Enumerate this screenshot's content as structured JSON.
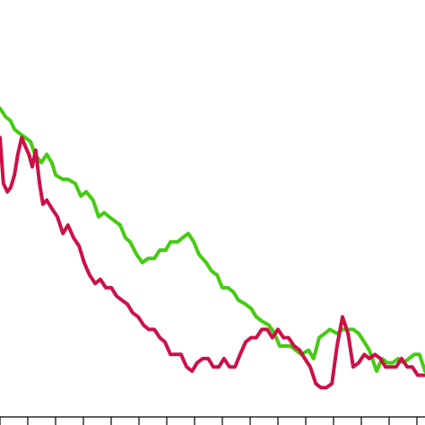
{
  "chart_data": {
    "type": "line",
    "title": "",
    "xlabel": "",
    "ylabel": "",
    "grid": false,
    "legend": "none",
    "xlim": [
      0,
      100
    ],
    "ylim": [
      0,
      100
    ],
    "x_ticks": [
      0,
      6.54,
      13.08,
      19.62,
      26.16,
      32.7,
      39.24,
      45.78,
      52.32,
      58.86,
      65.4,
      71.94,
      78.48,
      85.02,
      91.56,
      98.1
    ],
    "series": [
      {
        "color": "#44cc11",
        "x": [
          0,
          1.3,
          2.5,
          3.4,
          4.6,
          5.9,
          7.2,
          8.2,
          9.7,
          11.0,
          12.2,
          13.1,
          14.8,
          16.0,
          17.7,
          19.0,
          20.3,
          21.9,
          23.2,
          24.5,
          25.7,
          27.0,
          28.3,
          29.5,
          30.6,
          32.1,
          33.5,
          34.8,
          36.3,
          37.6,
          39.0,
          40.1,
          41.8,
          43.0,
          44.3,
          45.6,
          46.8,
          48.5,
          49.8,
          51.1,
          52.3,
          53.6,
          54.9,
          56.1,
          57.8,
          59.1,
          60.3,
          61.6,
          63.3,
          64.6,
          65.8,
          67.1,
          68.4,
          69.6,
          70.9,
          72.6,
          73.8,
          75.1,
          76.4,
          77.6,
          79.3,
          80.6,
          81.9,
          83.1,
          84.4,
          85.7,
          86.9,
          88.6,
          89.9,
          91.1,
          92.4,
          93.7,
          95.0,
          96.2,
          97.5,
          98.7,
          100
        ],
        "y": [
          74,
          72,
          71,
          69,
          68,
          67,
          66,
          63,
          61,
          63,
          61,
          58,
          57,
          57,
          56,
          53,
          54,
          52,
          48,
          49,
          48,
          47,
          46,
          43,
          42,
          39,
          37,
          38,
          38,
          40,
          40,
          42,
          42,
          43,
          44,
          42,
          39,
          37,
          35,
          34,
          31,
          31,
          30,
          28,
          27,
          26,
          24,
          23,
          22,
          20,
          17,
          17,
          17,
          16,
          15,
          16,
          14,
          19,
          20,
          21,
          20,
          21,
          21,
          21,
          20,
          18,
          16,
          11,
          14,
          13,
          13,
          14,
          13,
          14,
          15,
          15,
          11
        ]
      },
      {
        "color": "#cc1148",
        "x": [
          0,
          0.8,
          1.7,
          2.5,
          3.4,
          4.2,
          5.1,
          5.9,
          6.8,
          7.6,
          8.4,
          9.3,
          10.1,
          11.0,
          12.2,
          13.5,
          14.8,
          16.0,
          17.3,
          18.6,
          19.8,
          21.1,
          22.4,
          23.6,
          24.9,
          26.2,
          27.4,
          28.7,
          30.0,
          31.2,
          32.5,
          33.8,
          35.0,
          36.3,
          37.6,
          38.8,
          40.1,
          41.4,
          42.6,
          43.9,
          45.2,
          46.4,
          47.7,
          49.0,
          50.2,
          51.5,
          52.7,
          54.0,
          55.3,
          56.5,
          57.8,
          59.1,
          60.3,
          61.6,
          62.9,
          64.1,
          65.4,
          66.7,
          67.9,
          69.2,
          70.5,
          71.7,
          73.0,
          74.3,
          75.5,
          76.8,
          78.1,
          79.3,
          80.6,
          81.9,
          83.1,
          84.4,
          85.7,
          86.9,
          88.2,
          89.5,
          90.7,
          92.0,
          93.2,
          94.5,
          95.8,
          97.0,
          98.3,
          100
        ],
        "y": [
          67,
          56,
          54,
          55,
          58,
          63,
          67,
          65,
          63,
          60,
          64,
          56,
          51,
          52,
          50,
          48,
          44,
          46,
          43,
          41,
          37,
          34,
          32,
          33,
          31,
          31,
          29,
          28,
          27,
          25,
          24,
          22,
          21,
          21,
          19,
          18,
          15,
          15,
          15,
          12,
          11,
          13,
          14,
          14,
          12,
          12,
          14,
          12,
          12,
          15,
          18,
          19,
          19,
          21,
          21,
          19,
          21,
          19,
          19,
          17,
          16,
          14,
          12,
          8,
          7,
          7,
          8,
          17,
          24,
          20,
          12,
          13,
          15,
          14,
          15,
          14,
          12,
          12,
          12,
          14,
          12,
          12,
          10,
          10
        ]
      }
    ]
  }
}
